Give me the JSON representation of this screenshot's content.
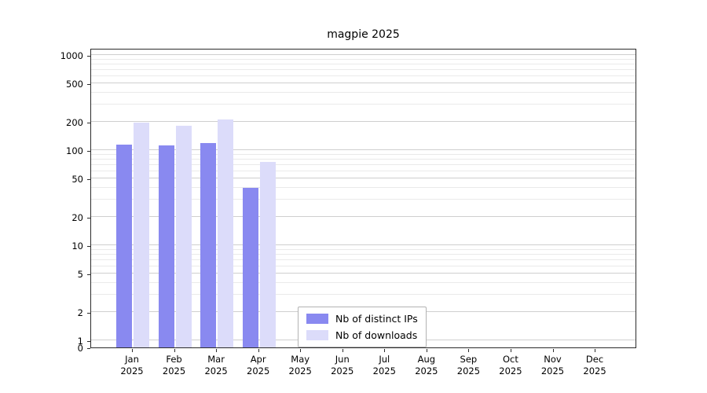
{
  "chart_data": {
    "type": "bar",
    "title": "magpie 2025",
    "categories": [
      "Jan 2025",
      "Feb 2025",
      "Mar 2025",
      "Apr 2025",
      "May 2025",
      "Jun 2025",
      "Jul 2025",
      "Aug 2025",
      "Sep 2025",
      "Oct 2025",
      "Nov 2025",
      "Dec 2025"
    ],
    "series": [
      {
        "name": "Nb of distinct IPs",
        "color": "#8989f0",
        "values": [
          115,
          112,
          118,
          40,
          0,
          0,
          0,
          0,
          0,
          0,
          0,
          0
        ]
      },
      {
        "name": "Nb of downloads",
        "color": "#dcdcfa",
        "values": [
          195,
          180,
          210,
          75,
          0,
          0,
          0,
          0,
          0,
          0,
          0,
          0
        ]
      }
    ],
    "yscale": "symlog",
    "yticks": [
      0,
      1,
      2,
      5,
      10,
      20,
      50,
      100,
      200,
      500,
      1000
    ],
    "ylim": [
      0,
      1200
    ],
    "xlabel": "",
    "ylabel": "",
    "grid": true,
    "legend_position": "lower center",
    "colors": {
      "grid_major": "#cfcfcf",
      "grid_minor": "#eaeaea",
      "axis": "#2b2b2b",
      "text": "#000000",
      "background": "#ffffff"
    }
  }
}
